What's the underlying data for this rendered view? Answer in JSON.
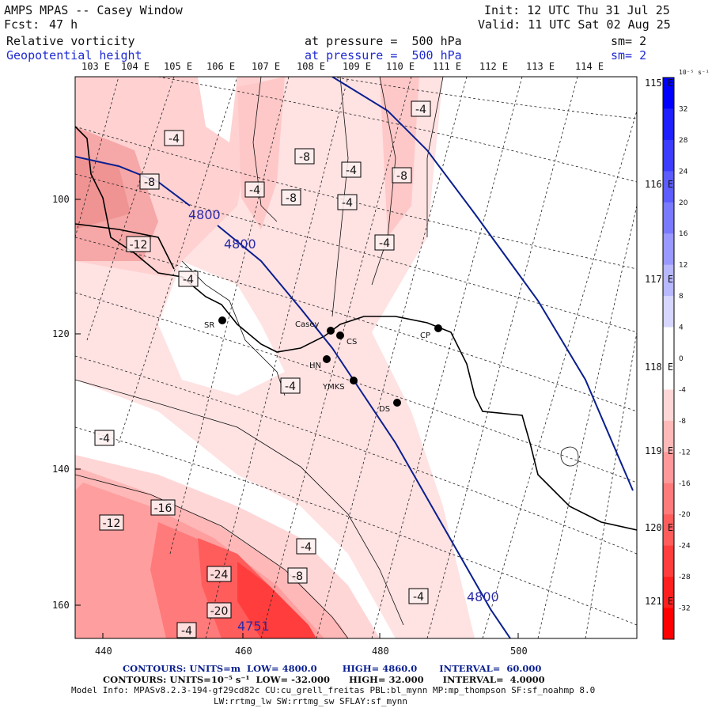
{
  "header": {
    "title": "AMPS MPAS -- Casey Window",
    "forecast_label": "Fcst:",
    "forecast_value": "47 h",
    "init": "Init: 12 UTC Thu 31 Jul 25",
    "valid": "Valid: 11 UTC Sat 02 Aug 25",
    "field1": "Relative vorticity",
    "field1_level": "at pressure =  500 hPa",
    "field1_sm": "sm= 2",
    "field2": "Geopotential height",
    "field2_level": "at pressure =  500 hPa",
    "field2_sm": "sm= 2"
  },
  "map": {
    "lon_labels_top": [
      "103 E",
      "104 E",
      "105 E",
      "106 E",
      "107 E",
      "108 E",
      "109 E",
      "110 E",
      "111 E",
      "112 E",
      "113 E",
      "114 E"
    ],
    "lon_labels_right": [
      "115 E",
      "116 E",
      "117 E",
      "118 E",
      "119 E",
      "120 E",
      "121 E"
    ],
    "x_ticks": [
      "440",
      "460",
      "480",
      "500"
    ],
    "y_ticks": [
      "100",
      "120",
      "140",
      "160"
    ],
    "stations": [
      {
        "name": "SR"
      },
      {
        "name": "Casey"
      },
      {
        "name": "CS"
      },
      {
        "name": "HN"
      },
      {
        "name": "YMKS"
      },
      {
        "name": "DS"
      },
      {
        "name": "CP"
      }
    ],
    "height_labels": [
      "4800",
      "4800",
      "4800",
      "4751"
    ],
    "vorticity_labels": [
      "-4",
      "-4",
      "-8",
      "-8",
      "-4",
      "-4",
      "-8",
      "-8",
      "-4",
      "-4",
      "-12",
      "-4",
      "-4",
      "-4",
      "-16",
      "-12",
      "-4",
      "-24",
      "-8",
      "-20",
      "-4",
      "-4"
    ]
  },
  "colorbar": {
    "unit": "10⁻⁵ s⁻¹",
    "ticks": [
      "32",
      "28",
      "24",
      "20",
      "16",
      "12",
      "8",
      "4",
      "0",
      "-4",
      "-8",
      "-12",
      "-16",
      "-20",
      "-24",
      "-28",
      "-32"
    ],
    "colors": [
      "#0000ff",
      "#1f1fff",
      "#3d3dff",
      "#5c5cff",
      "#7a7aff",
      "#9999ff",
      "#b8b8ff",
      "#d6d6ff",
      "#ffffff",
      "#ffffff",
      "#ffd6d6",
      "#ffb8b8",
      "#ff9999",
      "#ff7a7a",
      "#ff5c5c",
      "#ff3d3d",
      "#ff1f1f",
      "#ff0000"
    ]
  },
  "footer": {
    "line1": "CONTOURS: UNITS=m  LOW= 4800.0        HIGH= 4860.0       INTERVAL=  60.000",
    "line2": "CONTOURS: UNITS=10⁻⁵ s⁻¹  LOW= -32.000      HIGH= 32.000      INTERVAL=  4.0000",
    "line3": "Model Info: MPASv8.2.3-194-gf29cd82c CU:cu_grell_freitas PBL:bl_mynn MP:mp_thompson SF:sf_noahmp 8.0",
    "line4": "LW:rrtmg_lw SW:rrtmg_sw SFLAY:sf_mynn"
  }
}
